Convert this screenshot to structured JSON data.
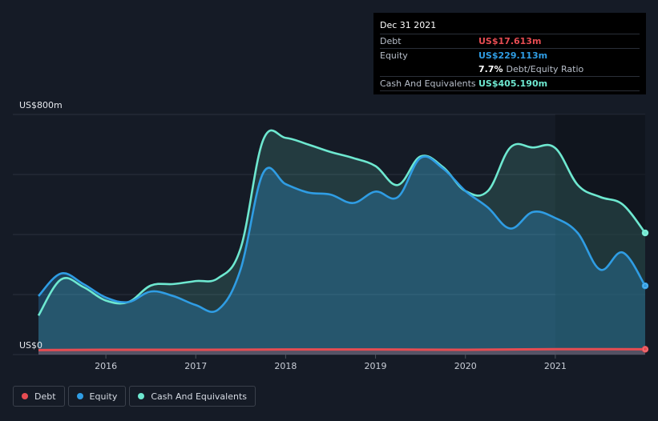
{
  "tooltip": {
    "date": "Dec 31 2021",
    "debt_label": "Debt",
    "debt_value": "US$17.613m",
    "equity_label": "Equity",
    "equity_value": "US$229.113m",
    "ratio_value": "7.7%",
    "ratio_label": "Debt/Equity Ratio",
    "cash_label": "Cash And Equivalents",
    "cash_value": "US$405.190m"
  },
  "legend": {
    "debt": "Debt",
    "equity": "Equity",
    "cash": "Cash And Equivalents"
  },
  "colors": {
    "background": "#151b26",
    "debt": "#e64c52",
    "equity": "#2f9de4",
    "cash": "#6ee8d0",
    "grid": "#2c323d"
  },
  "chart_data": {
    "type": "area",
    "title": "",
    "xlabel": "",
    "ylabel": "",
    "y_top_label": "US$800m",
    "y_bottom_label": "US$0",
    "ylim": [
      0,
      800
    ],
    "xlim": [
      2015.25,
      2022.0
    ],
    "x_ticks": [
      "2016",
      "2017",
      "2018",
      "2019",
      "2020",
      "2021"
    ],
    "x_tick_values": [
      2016,
      2017,
      2018,
      2019,
      2020,
      2021
    ],
    "grid": true,
    "legend_position": "bottom-left",
    "series": [
      {
        "name": "Debt",
        "key": "debt",
        "x": [
          2015.25,
          2016.0,
          2017.0,
          2018.0,
          2019.0,
          2020.0,
          2021.0,
          2022.0
        ],
        "y": [
          15,
          16,
          16,
          17,
          17,
          16,
          18,
          17.613
        ]
      },
      {
        "name": "Equity",
        "key": "equity",
        "x": [
          2015.25,
          2015.5,
          2015.75,
          2016.0,
          2016.25,
          2016.5,
          2016.75,
          2017.0,
          2017.25,
          2017.5,
          2017.75,
          2018.0,
          2018.25,
          2018.5,
          2018.75,
          2019.0,
          2019.25,
          2019.5,
          2019.75,
          2020.0,
          2020.25,
          2020.5,
          2020.75,
          2021.0,
          2021.25,
          2021.5,
          2021.75,
          2022.0
        ],
        "y": [
          195,
          270,
          235,
          190,
          175,
          210,
          195,
          165,
          150,
          285,
          605,
          568,
          540,
          533,
          505,
          543,
          525,
          655,
          620,
          545,
          490,
          420,
          475,
          455,
          405,
          283,
          340,
          229.113
        ]
      },
      {
        "name": "Cash And Equivalents",
        "key": "cash",
        "x": [
          2015.25,
          2015.5,
          2015.75,
          2016.0,
          2016.25,
          2016.5,
          2016.75,
          2017.0,
          2017.25,
          2017.5,
          2017.75,
          2018.0,
          2018.25,
          2018.5,
          2018.75,
          2019.0,
          2019.25,
          2019.5,
          2019.75,
          2020.0,
          2020.25,
          2020.5,
          2020.75,
          2021.0,
          2021.25,
          2021.5,
          2021.75,
          2022.0
        ],
        "y": [
          130,
          250,
          225,
          180,
          175,
          230,
          235,
          245,
          255,
          355,
          715,
          722,
          700,
          675,
          655,
          628,
          565,
          660,
          625,
          545,
          545,
          690,
          690,
          688,
          565,
          525,
          500,
          405.19
        ]
      }
    ]
  }
}
